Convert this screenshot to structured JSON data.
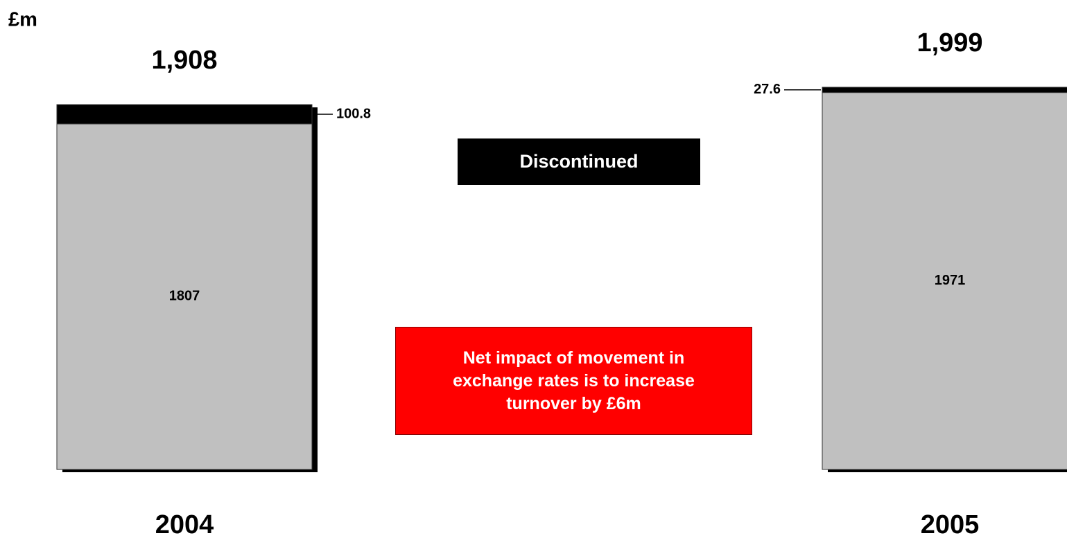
{
  "chart_data": {
    "type": "stacked_bar",
    "unit_label": "£m",
    "categories": [
      "2004",
      "2005"
    ],
    "series": [
      {
        "color": "#c0c0c0",
        "values": [
          1807,
          1971
        ]
      },
      {
        "name": "Discontinued",
        "color": "#000000",
        "values": [
          100.8,
          27.6
        ]
      }
    ],
    "totals": [
      1908,
      1999
    ],
    "total_labels": [
      "1,908",
      "1,999"
    ],
    "annotation": "Net impact of movement in exchange rates is to increase turnover by £6m"
  }
}
